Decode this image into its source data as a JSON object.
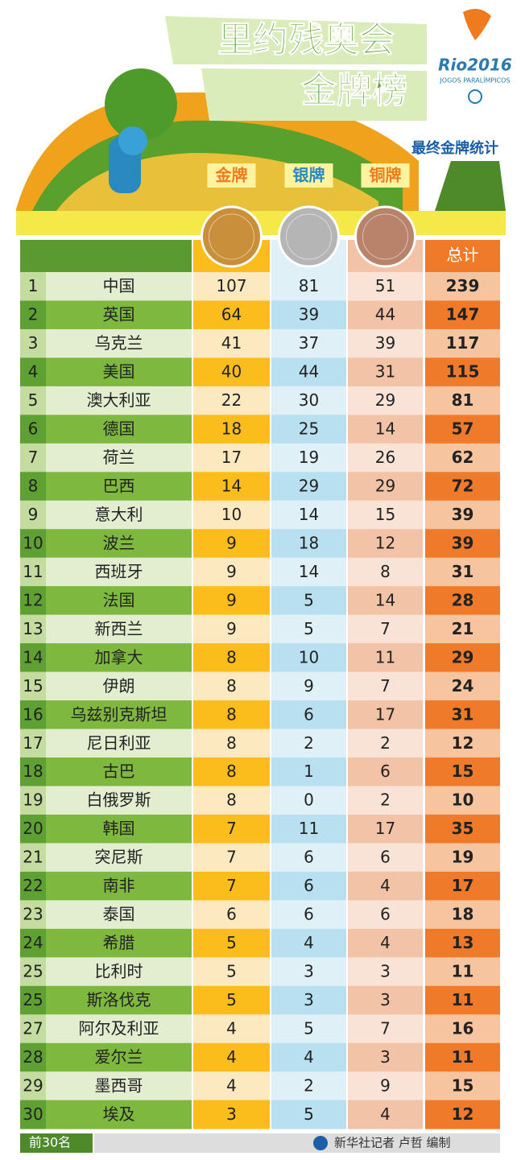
{
  "header": {
    "title_line1": "里约残奥会",
    "title_line2": "金牌榜",
    "subtitle": "最终金牌统计",
    "logo": "Rio2016",
    "logo_sub": "JOGOS PARALÍMPICOS"
  },
  "table": {
    "columns": [
      "金牌",
      "银牌",
      "铜牌",
      "总计"
    ],
    "rows": [
      [
        1,
        "中国",
        107,
        81,
        51,
        239
      ],
      [
        2,
        "英国",
        64,
        39,
        44,
        147
      ],
      [
        3,
        "乌克兰",
        41,
        37,
        39,
        117
      ],
      [
        4,
        "美国",
        40,
        44,
        31,
        115
      ],
      [
        5,
        "澳大利亚",
        22,
        30,
        29,
        81
      ],
      [
        6,
        "德国",
        18,
        25,
        14,
        57
      ],
      [
        7,
        "荷兰",
        17,
        19,
        26,
        62
      ],
      [
        8,
        "巴西",
        14,
        29,
        29,
        72
      ],
      [
        9,
        "意大利",
        10,
        14,
        15,
        39
      ],
      [
        10,
        "波兰",
        9,
        18,
        12,
        39
      ],
      [
        11,
        "西班牙",
        9,
        14,
        8,
        31
      ],
      [
        12,
        "法国",
        9,
        5,
        14,
        28
      ],
      [
        13,
        "新西兰",
        9,
        5,
        7,
        21
      ],
      [
        14,
        "加拿大",
        8,
        10,
        11,
        29
      ],
      [
        15,
        "伊朗",
        8,
        9,
        7,
        24
      ],
      [
        16,
        "乌兹别克斯坦",
        8,
        6,
        17,
        31
      ],
      [
        17,
        "尼日利亚",
        8,
        2,
        2,
        12
      ],
      [
        18,
        "古巴",
        8,
        1,
        6,
        15
      ],
      [
        19,
        "白俄罗斯",
        8,
        0,
        2,
        10
      ],
      [
        20,
        "韩国",
        7,
        11,
        17,
        35
      ],
      [
        21,
        "突尼斯",
        7,
        6,
        6,
        19
      ],
      [
        22,
        "南非",
        7,
        6,
        4,
        17
      ],
      [
        23,
        "泰国",
        6,
        6,
        6,
        18
      ],
      [
        24,
        "希腊",
        5,
        4,
        4,
        13
      ],
      [
        25,
        "比利时",
        5,
        3,
        3,
        11
      ],
      [
        25,
        "斯洛伐克",
        5,
        3,
        3,
        11
      ],
      [
        27,
        "阿尔及利亚",
        4,
        5,
        7,
        16
      ],
      [
        28,
        "爱尔兰",
        4,
        4,
        3,
        11
      ],
      [
        29,
        "墨西哥",
        4,
        2,
        9,
        15
      ],
      [
        30,
        "埃及",
        3,
        5,
        4,
        12
      ]
    ]
  },
  "footer": {
    "note": "前30名",
    "credit": "新华社记者 卢哲 编制"
  }
}
